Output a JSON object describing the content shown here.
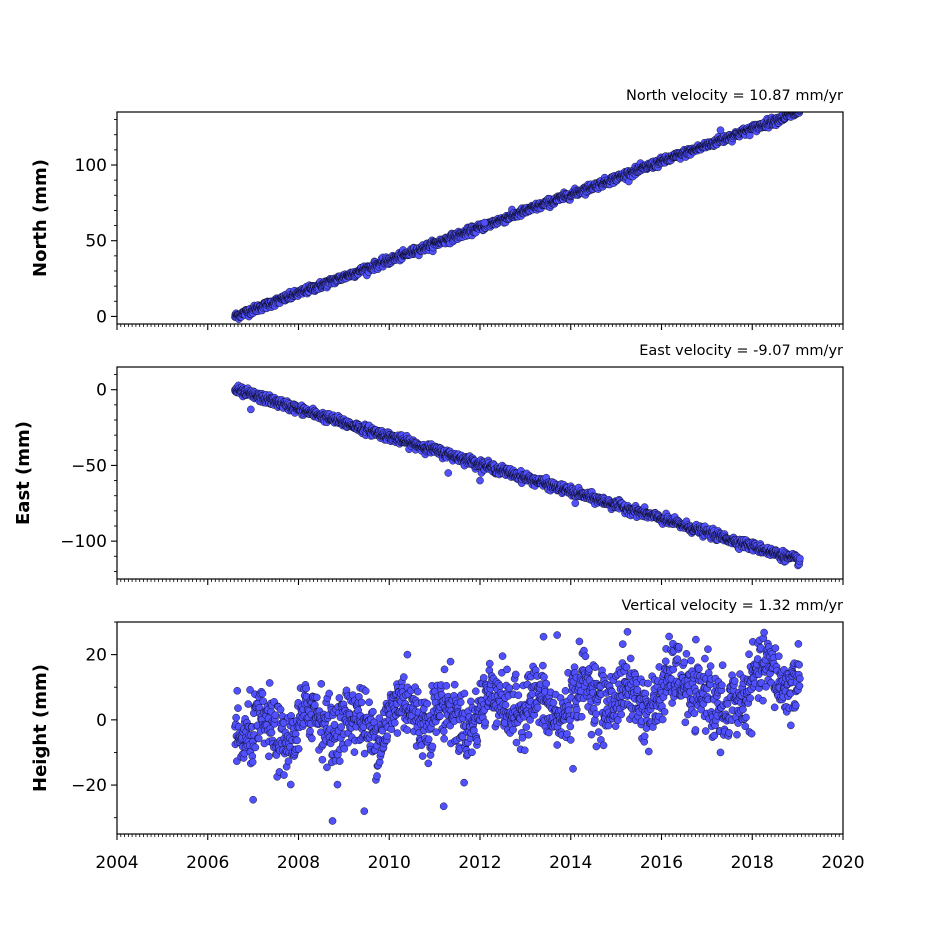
{
  "chart_data": {
    "type": "scatter",
    "x_axis": {
      "ticks": [
        2004,
        2006,
        2008,
        2010,
        2012,
        2014,
        2016,
        2018,
        2020
      ],
      "tick_labels": [
        "2004",
        "2006",
        "2008",
        "2010",
        "2012",
        "2014",
        "2016",
        "2018",
        "2020"
      ],
      "xlim": [
        2004,
        2020
      ],
      "minor_ticks_per_year": 12
    },
    "marker_color": "#5050ff",
    "marker_edge_color": "#000000",
    "panels": [
      {
        "name": "north",
        "title": "North velocity = 10.87 mm/yr",
        "ylabel": "North (mm)",
        "ylim": [
          -5,
          135
        ],
        "yticks": [
          0,
          50,
          100
        ],
        "ytick_labels": [
          "0",
          "50",
          "100"
        ],
        "series": {
          "x_start": 2006.6,
          "x_end": 2019.05,
          "y_start": 0,
          "slope_mm_per_yr": 10.87,
          "noise_sd": 1.3,
          "outliers": [
            {
              "x": 2017.3,
              "y": 123
            },
            {
              "x": 2012.1,
              "y": 62
            }
          ]
        }
      },
      {
        "name": "east",
        "title": "East velocity = -9.07 mm/yr",
        "ylabel": "East (mm)",
        "ylim": [
          -125,
          15
        ],
        "yticks": [
          0,
          -50,
          -100
        ],
        "ytick_labels": [
          "0",
          "−50",
          "−100"
        ],
        "series": {
          "x_start": 2006.6,
          "x_end": 2019.05,
          "y_start": 0,
          "slope_mm_per_yr": -9.07,
          "noise_sd": 1.5,
          "outliers": [
            {
              "x": 2006.95,
              "y": -13
            },
            {
              "x": 2011.3,
              "y": -55
            },
            {
              "x": 2012.0,
              "y": -60
            },
            {
              "x": 2014.1,
              "y": -75
            }
          ]
        }
      },
      {
        "name": "height",
        "title": "Vertical velocity = 1.32 mm/yr",
        "ylabel": "Height (mm)",
        "ylim": [
          -35,
          30
        ],
        "yticks": [
          20,
          0,
          -20
        ],
        "ytick_labels": [
          "20",
          "0",
          "−20"
        ],
        "series": {
          "x_start": 2006.6,
          "x_end": 2019.05,
          "y_start": -4,
          "slope_mm_per_yr": 1.32,
          "noise_sd": 5.0,
          "outliers": [
            {
              "x": 2008.75,
              "y": -31
            },
            {
              "x": 2009.45,
              "y": -28
            },
            {
              "x": 2011.2,
              "y": -26.5
            },
            {
              "x": 2007.0,
              "y": -24.5
            },
            {
              "x": 2015.25,
              "y": 27
            },
            {
              "x": 2013.4,
              "y": 25.5
            },
            {
              "x": 2013.7,
              "y": 26
            },
            {
              "x": 2010.4,
              "y": 20
            },
            {
              "x": 2017.3,
              "y": -10
            },
            {
              "x": 2014.05,
              "y": -15
            }
          ]
        }
      }
    ]
  }
}
